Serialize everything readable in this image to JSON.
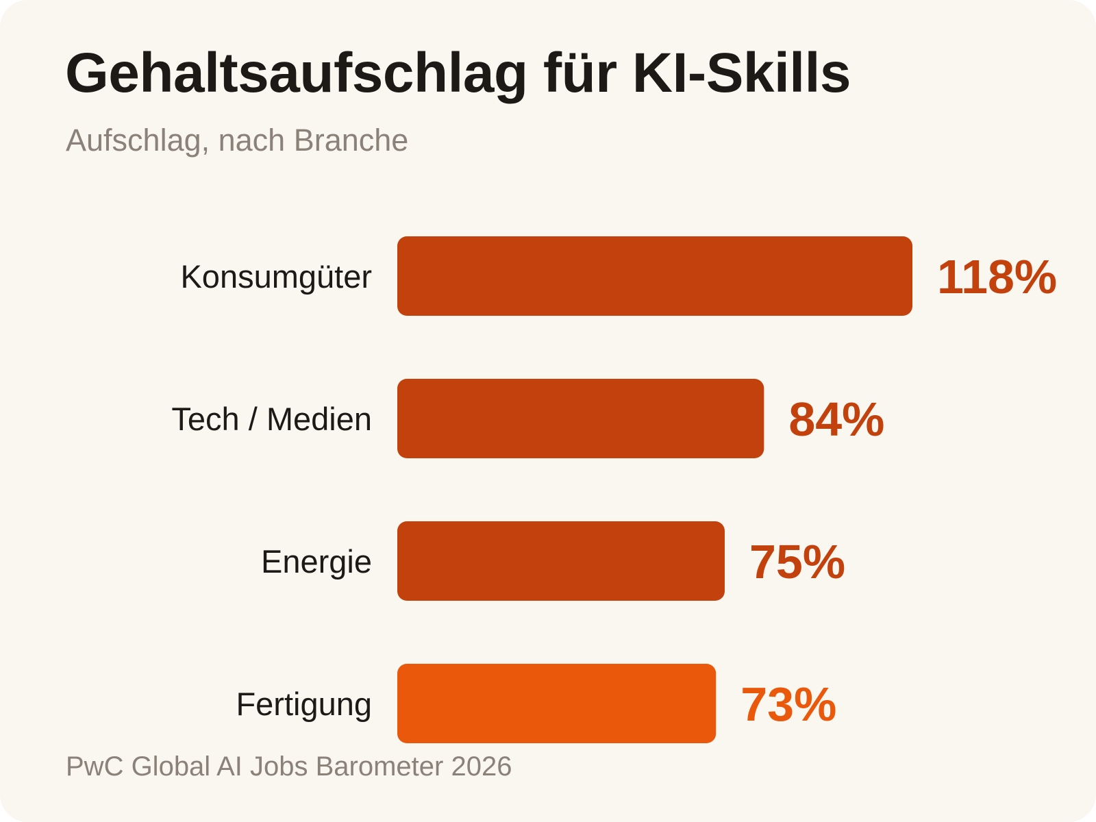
{
  "chart_data": {
    "type": "bar",
    "orientation": "horizontal",
    "title": "Gehaltsaufschlag für KI-Skills",
    "subtitle": "Aufschlag, nach Branche",
    "source": "PwC Global AI Jobs Barometer 2026",
    "categories": [
      "Konsumgüter",
      "Tech / Medien",
      "Energie",
      "Fertigung"
    ],
    "values": [
      118,
      84,
      75,
      73
    ],
    "value_labels": [
      "118%",
      "84%",
      "75%",
      "73%"
    ],
    "unit": "%",
    "xlim": [
      0,
      118
    ],
    "grid": false,
    "legend": "none",
    "colors": {
      "bar_primary": "#c2410c",
      "bar_highlight": "#ea580c",
      "background": "#faf6f0",
      "title": "#1c1917",
      "muted_text": "#8a8178"
    },
    "highlight_category": "Fertigung"
  }
}
